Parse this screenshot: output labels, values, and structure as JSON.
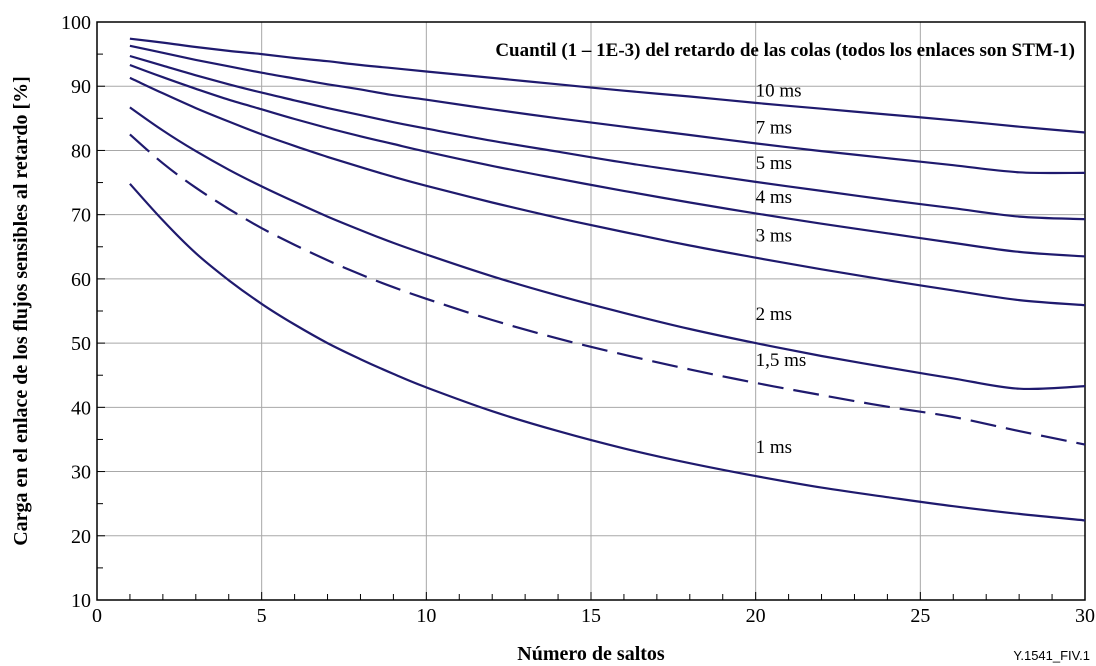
{
  "figure_id": "Y.1541_FIV.1",
  "colors": {
    "line": "#1f1a6e",
    "grid": "#a8a8a8",
    "axis": "#000000",
    "background": "#ffffff"
  },
  "chart_data": {
    "type": "line",
    "title": "Cuantil (1 – 1E-3) del retardo de las colas (todos los enlaces son STM-1)",
    "xlabel": "Número de saltos",
    "ylabel": "Carga en el enlace de los flujos sensibles al retardo [%]",
    "xlim": [
      0,
      30
    ],
    "ylim": [
      10,
      100
    ],
    "xticks": [
      0,
      5,
      10,
      15,
      20,
      25,
      30
    ],
    "yticks": [
      10,
      20,
      30,
      40,
      50,
      60,
      70,
      80,
      90,
      100
    ],
    "x_minor_step": 1,
    "y_minor_step": 5,
    "grid": true,
    "x": [
      1,
      2,
      3,
      4,
      5,
      6,
      7,
      8,
      9,
      10,
      12,
      14,
      16,
      18,
      20,
      22,
      24,
      26,
      28,
      30
    ],
    "series": [
      {
        "name": "10 ms",
        "style": "solid",
        "label_at": [
          20,
          89.5
        ],
        "values": [
          97.4,
          96.8,
          96.1,
          95.5,
          95.0,
          94.4,
          93.9,
          93.3,
          92.8,
          92.3,
          91.3,
          90.3,
          89.3,
          88.4,
          87.4,
          86.5,
          85.6,
          84.7,
          83.7,
          82.8
        ]
      },
      {
        "name": "7 ms",
        "style": "solid",
        "label_at": [
          20,
          83.7
        ],
        "values": [
          96.3,
          95.2,
          94.1,
          93.1,
          92.1,
          91.2,
          90.3,
          89.5,
          88.6,
          87.9,
          86.4,
          85.0,
          83.7,
          82.4,
          81.1,
          79.9,
          78.8,
          77.7,
          76.6,
          76.5
        ]
      },
      {
        "name": "5 ms",
        "style": "solid",
        "label_at": [
          20,
          78.2
        ],
        "values": [
          94.7,
          93.2,
          91.7,
          90.3,
          89.0,
          87.8,
          86.6,
          85.5,
          84.4,
          83.4,
          81.5,
          79.8,
          78.1,
          76.6,
          75.1,
          73.7,
          72.3,
          71.0,
          69.7,
          69.3
        ]
      },
      {
        "name": "4 ms",
        "style": "solid",
        "label_at": [
          20,
          72.9
        ],
        "values": [
          93.3,
          91.4,
          89.6,
          87.9,
          86.4,
          84.9,
          83.5,
          82.2,
          81.0,
          79.8,
          77.6,
          75.6,
          73.7,
          71.9,
          70.2,
          68.6,
          67.1,
          65.6,
          64.2,
          63.5
        ]
      },
      {
        "name": "3 ms",
        "style": "solid",
        "label_at": [
          20,
          66.9
        ],
        "values": [
          91.3,
          88.9,
          86.6,
          84.5,
          82.5,
          80.7,
          79.0,
          77.4,
          75.9,
          74.5,
          71.9,
          69.5,
          67.3,
          65.2,
          63.3,
          61.5,
          59.8,
          58.2,
          56.7,
          55.9
        ]
      },
      {
        "name": "2 ms",
        "style": "solid",
        "label_at": [
          20,
          54.7
        ],
        "values": [
          86.7,
          83.1,
          79.9,
          77.0,
          74.4,
          72.0,
          69.7,
          67.6,
          65.6,
          63.8,
          60.4,
          57.4,
          54.7,
          52.2,
          50.0,
          48.0,
          46.2,
          44.5,
          42.9,
          43.3
        ]
      },
      {
        "name": "1,5 ms",
        "style": "dashed",
        "label_at": [
          20,
          47.5
        ],
        "values": [
          82.5,
          78.0,
          74.2,
          70.9,
          67.9,
          65.3,
          62.9,
          60.7,
          58.7,
          56.9,
          53.6,
          50.7,
          48.2,
          45.9,
          43.8,
          41.9,
          40.1,
          38.5,
          36.3,
          34.2
        ]
      },
      {
        "name": "1 ms",
        "style": "solid",
        "label_at": [
          20,
          34.0
        ],
        "values": [
          74.8,
          69.1,
          64.0,
          59.8,
          56.1,
          52.9,
          50.0,
          47.5,
          45.2,
          43.1,
          39.4,
          36.3,
          33.6,
          31.3,
          29.3,
          27.5,
          26.0,
          24.6,
          23.4,
          22.4
        ]
      }
    ]
  }
}
